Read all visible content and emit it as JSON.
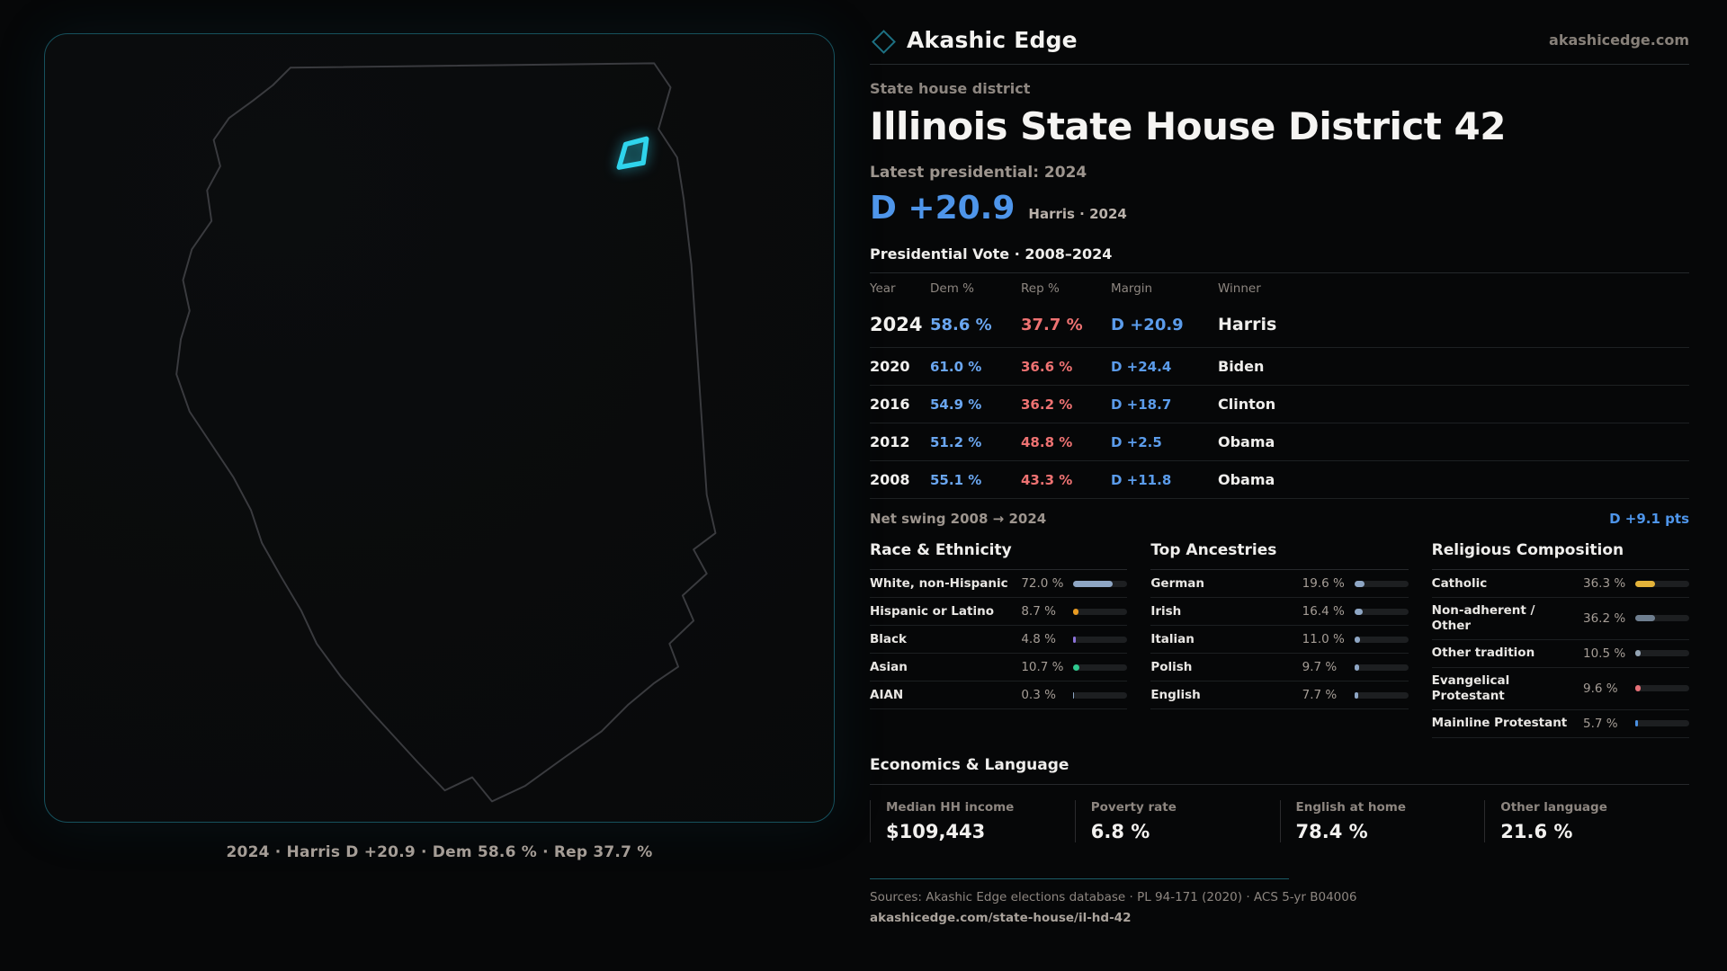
{
  "brand": {
    "name": "Akashic Edge",
    "domain": "akashicedge.com"
  },
  "map": {
    "caption": "2024 · Harris D +20.9 · Dem 58.6 % · Rep 37.7 %"
  },
  "header": {
    "kicker": "State house district",
    "title": "Illinois State House District 42",
    "latest_label": "Latest presidential: 2024",
    "margin_big": "D +20.9",
    "margin_sub": "Harris · 2024"
  },
  "table": {
    "title": "Presidential Vote · 2008–2024",
    "columns": [
      "Year",
      "Dem %",
      "Rep %",
      "Margin",
      "Winner"
    ],
    "rows": [
      {
        "year": "2024",
        "dem": "58.6 %",
        "rep": "37.7 %",
        "margin": "D +20.9",
        "winner": "Harris"
      },
      {
        "year": "2020",
        "dem": "61.0 %",
        "rep": "36.6 %",
        "margin": "D +24.4",
        "winner": "Biden"
      },
      {
        "year": "2016",
        "dem": "54.9 %",
        "rep": "36.2 %",
        "margin": "D +18.7",
        "winner": "Clinton"
      },
      {
        "year": "2012",
        "dem": "51.2 %",
        "rep": "48.8 %",
        "margin": "D +2.5",
        "winner": "Obama"
      },
      {
        "year": "2008",
        "dem": "55.1 %",
        "rep": "43.3 %",
        "margin": "D +11.8",
        "winner": "Obama"
      }
    ],
    "net_swing_label": "Net swing 2008 → 2024",
    "net_swing_value": "D +9.1 pts"
  },
  "demographics": {
    "race": {
      "title": "Race & Ethnicity",
      "rows": [
        {
          "label": "White, non-Hispanic",
          "value": "72.0 %",
          "pct": 72.0,
          "color": "#8ea6c4"
        },
        {
          "label": "Hispanic or Latino",
          "value": "8.7 %",
          "pct": 8.7,
          "color": "#e89b22"
        },
        {
          "label": "Black",
          "value": "4.8 %",
          "pct": 4.8,
          "color": "#8b72d8"
        },
        {
          "label": "Asian",
          "value": "10.7 %",
          "pct": 10.7,
          "color": "#2fc98f"
        },
        {
          "label": "AIAN",
          "value": "0.3 %",
          "pct": 0.3,
          "color": "#8ea6c4"
        }
      ]
    },
    "ancestries": {
      "title": "Top Ancestries",
      "rows": [
        {
          "label": "German",
          "value": "19.6 %",
          "pct": 19.6,
          "color": "#8ea6c4"
        },
        {
          "label": "Irish",
          "value": "16.4 %",
          "pct": 16.4,
          "color": "#8ea6c4"
        },
        {
          "label": "Italian",
          "value": "11.0 %",
          "pct": 11.0,
          "color": "#8ea6c4"
        },
        {
          "label": "Polish",
          "value": "9.7 %",
          "pct": 9.7,
          "color": "#8ea6c4"
        },
        {
          "label": "English",
          "value": "7.7 %",
          "pct": 7.7,
          "color": "#8ea6c4"
        }
      ]
    },
    "religion": {
      "title": "Religious Composition",
      "rows": [
        {
          "label": "Catholic",
          "value": "36.3 %",
          "pct": 36.3,
          "color": "#e3b33a"
        },
        {
          "label": "Non-adherent / Other",
          "value": "36.2 %",
          "pct": 36.2,
          "color": "#6e7e8f"
        },
        {
          "label": "Other tradition",
          "value": "10.5 %",
          "pct": 10.5,
          "color": "#93a3b3"
        },
        {
          "label": "Evangelical Protestant",
          "value": "9.6 %",
          "pct": 9.6,
          "color": "#e57077"
        },
        {
          "label": "Mainline Protestant",
          "value": "5.7 %",
          "pct": 5.7,
          "color": "#4a90e2"
        }
      ]
    }
  },
  "economics": {
    "title": "Economics & Language",
    "stats": [
      {
        "label": "Median HH income",
        "value": "$109,443"
      },
      {
        "label": "Poverty rate",
        "value": "6.8 %"
      },
      {
        "label": "English at home",
        "value": "78.4 %"
      },
      {
        "label": "Other language",
        "value": "21.6 %"
      }
    ]
  },
  "footer": {
    "sources": "Sources: Akashic Edge elections database · PL 94-171 (2020) · ACS 5-yr B04006",
    "url": "akashicedge.com/state-house/il-hd-42"
  },
  "colors": {
    "accent_cyan": "#2fd4ec",
    "dem_blue": "#6aa6f0",
    "rep_red": "#ee7272",
    "panel_border": "#16515d"
  }
}
